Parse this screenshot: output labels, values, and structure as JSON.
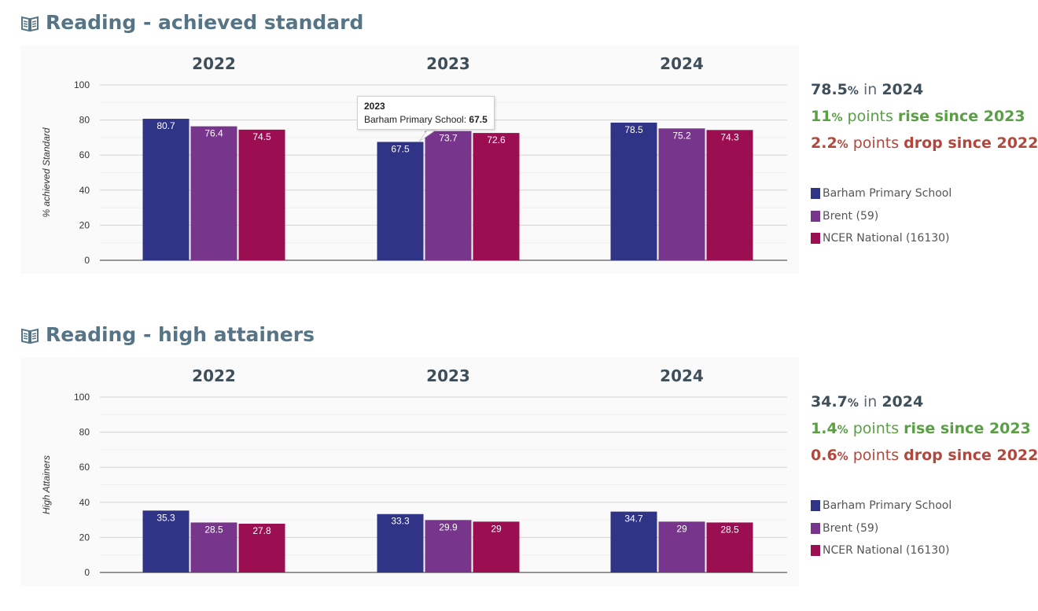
{
  "colors": {
    "school": "#303486",
    "local": "#77368c",
    "national": "#9c0e52",
    "title": "#557586",
    "rise": "#58a043",
    "drop": "#b1473d"
  },
  "legend": [
    {
      "name": "Barham Primary School",
      "color": "#303486"
    },
    {
      "name": "Brent (59)",
      "color": "#77368c"
    },
    {
      "name": "NCER National (16130)",
      "color": "#9c0e52"
    }
  ],
  "sections": [
    {
      "title": "Reading - achieved standard",
      "icon": "book-icon",
      "summary": {
        "current_value": "78.5",
        "current_unit": "%",
        "current_mid": " in ",
        "current_year": "2024",
        "rise_value": "11",
        "rise_unit": "%",
        "rise_text": " points ",
        "rise_word": "rise since 2023",
        "drop_value": "2.2",
        "drop_unit": "%",
        "drop_text": " points ",
        "drop_word": "drop since 2022"
      },
      "tooltip": {
        "title": "2023",
        "label": "Barham Primary School: ",
        "value": "67.5"
      }
    },
    {
      "title": "Reading - high attainers",
      "icon": "book-icon",
      "summary": {
        "current_value": "34.7",
        "current_unit": "%",
        "current_mid": " in ",
        "current_year": "2024",
        "rise_value": "1.4",
        "rise_unit": "%",
        "rise_text": " points ",
        "rise_word": "rise since 2023",
        "drop_value": "0.6",
        "drop_unit": "%",
        "drop_text": " points ",
        "drop_word": "drop since 2022"
      }
    }
  ],
  "chart_data": [
    {
      "type": "bar",
      "categories": [
        "2022",
        "2023",
        "2024"
      ],
      "ylabel": "% achieved Standard",
      "ylim": [
        0,
        100
      ],
      "yticks": [
        0,
        20,
        40,
        60,
        80,
        100
      ],
      "grid": true,
      "legend": "right",
      "series": [
        {
          "name": "Barham Primary School",
          "values": [
            80.7,
            67.5,
            78.5
          ]
        },
        {
          "name": "Brent (59)",
          "values": [
            76.4,
            73.7,
            75.2
          ]
        },
        {
          "name": "NCER National (16130)",
          "values": [
            74.5,
            72.6,
            74.3
          ]
        }
      ]
    },
    {
      "type": "bar",
      "categories": [
        "2022",
        "2023",
        "2024"
      ],
      "ylabel": "High Attainers",
      "ylim": [
        0,
        100
      ],
      "yticks": [
        0,
        20,
        40,
        60,
        80,
        100
      ],
      "grid": true,
      "legend": "right",
      "series": [
        {
          "name": "Barham Primary School",
          "values": [
            35.3,
            33.3,
            34.7
          ]
        },
        {
          "name": "Brent (59)",
          "values": [
            28.5,
            29.9,
            29
          ]
        },
        {
          "name": "NCER National (16130)",
          "values": [
            27.8,
            29,
            28.5
          ]
        }
      ]
    }
  ]
}
